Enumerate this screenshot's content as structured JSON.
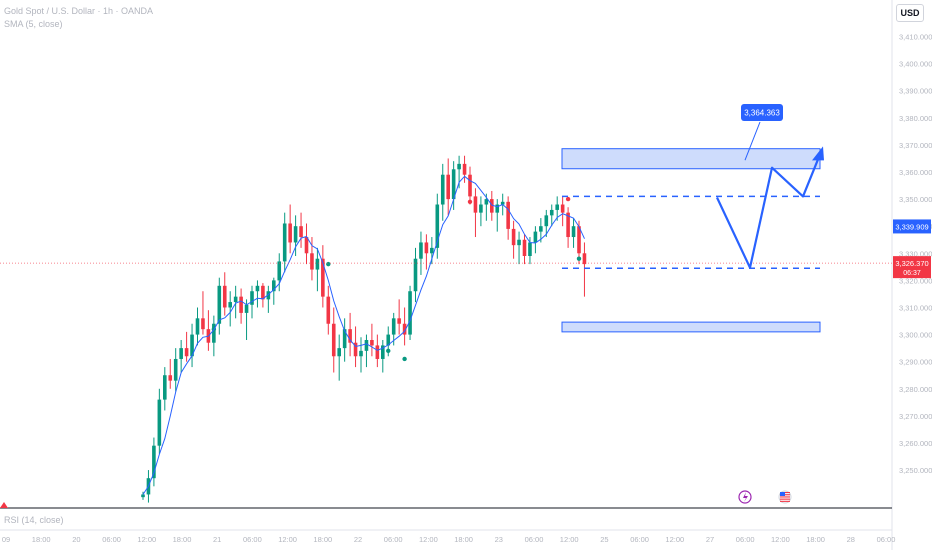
{
  "header": {
    "symbol_line": "Gold Spot / U.S. Dollar · 1h · OANDA",
    "indicator_line": "SMA (5, close)"
  },
  "currency": "USD",
  "lower_pane": {
    "label": "RSI (14, close)"
  },
  "chart_data": {
    "type": "candlestick",
    "y_axis": {
      "range": [
        3236,
        3422
      ],
      "ticks": [
        3250,
        3260,
        3270,
        3280,
        3290,
        3300,
        3310,
        3320,
        3330,
        3340,
        3350,
        3360,
        3370,
        3380,
        3390,
        3400,
        3410
      ],
      "tick_labels": [
        "3,250.000",
        "3,260.000",
        "3,270.000",
        "3,280.000",
        "3,290.000",
        "3,300.000",
        "3,310.000",
        "3,320.000",
        "3,330.000",
        "3,340.000",
        "3,350.000",
        "3,360.000",
        "3,370.000",
        "3,380.000",
        "3,390.000",
        "3,400.000",
        "3,410.000"
      ]
    },
    "x_axis": {
      "tick_labels": [
        "09",
        "18:00",
        "20",
        "06:00",
        "12:00",
        "18:00",
        "21",
        "06:00",
        "12:00",
        "18:00",
        "22",
        "06:00",
        "12:00",
        "18:00",
        "23",
        "06:00",
        "12:00",
        "25",
        "06:00",
        "12:00",
        "27",
        "06:00",
        "12:00",
        "18:00",
        "28",
        "06:00"
      ]
    },
    "candles": [
      [
        3240,
        3242,
        3239,
        3241
      ],
      [
        3241,
        3250,
        3238,
        3247
      ],
      [
        3247,
        3262,
        3244,
        3259
      ],
      [
        3259,
        3280,
        3256,
        3276
      ],
      [
        3276,
        3288,
        3272,
        3285
      ],
      [
        3285,
        3291,
        3280,
        3283
      ],
      [
        3283,
        3295,
        3279,
        3291
      ],
      [
        3291,
        3298,
        3286,
        3295
      ],
      [
        3295,
        3301,
        3290,
        3292
      ],
      [
        3292,
        3304,
        3288,
        3300
      ],
      [
        3300,
        3310,
        3296,
        3306
      ],
      [
        3306,
        3316,
        3300,
        3302
      ],
      [
        3302,
        3309,
        3294,
        3297
      ],
      [
        3297,
        3307,
        3292,
        3304
      ],
      [
        3304,
        3321,
        3300,
        3318
      ],
      [
        3318,
        3323,
        3307,
        3310
      ],
      [
        3310,
        3316,
        3303,
        3312
      ],
      [
        3312,
        3318,
        3306,
        3314
      ],
      [
        3314,
        3317,
        3304,
        3308
      ],
      [
        3308,
        3313,
        3298,
        3311
      ],
      [
        3311,
        3318,
        3306,
        3316
      ],
      [
        3316,
        3320,
        3310,
        3318
      ],
      [
        3318,
        3319,
        3310,
        3313
      ],
      [
        3313,
        3318,
        3308,
        3316
      ],
      [
        3316,
        3321,
        3311,
        3320
      ],
      [
        3320,
        3330,
        3316,
        3327
      ],
      [
        3327,
        3345,
        3323,
        3341
      ],
      [
        3341,
        3348,
        3330,
        3334
      ],
      [
        3334,
        3344,
        3329,
        3340
      ],
      [
        3340,
        3345,
        3332,
        3336
      ],
      [
        3336,
        3341,
        3326,
        3330
      ],
      [
        3330,
        3336,
        3320,
        3324
      ],
      [
        3324,
        3332,
        3316,
        3328
      ],
      [
        3328,
        3333,
        3310,
        3314
      ],
      [
        3314,
        3318,
        3300,
        3304
      ],
      [
        3304,
        3310,
        3286,
        3292
      ],
      [
        3292,
        3300,
        3283,
        3295
      ],
      [
        3295,
        3306,
        3290,
        3302
      ],
      [
        3302,
        3308,
        3292,
        3297
      ],
      [
        3297,
        3303,
        3288,
        3292
      ],
      [
        3292,
        3299,
        3286,
        3294
      ],
      [
        3294,
        3300,
        3288,
        3298
      ],
      [
        3298,
        3304,
        3292,
        3296
      ],
      [
        3296,
        3300,
        3288,
        3291
      ],
      [
        3291,
        3298,
        3286,
        3296
      ],
      [
        3296,
        3303,
        3292,
        3300
      ],
      [
        3300,
        3308,
        3296,
        3306
      ],
      [
        3306,
        3313,
        3300,
        3304
      ],
      [
        3304,
        3310,
        3296,
        3300
      ],
      [
        3300,
        3318,
        3298,
        3316
      ],
      [
        3316,
        3332,
        3312,
        3328
      ],
      [
        3328,
        3338,
        3322,
        3334
      ],
      [
        3334,
        3337,
        3324,
        3330
      ],
      [
        3330,
        3336,
        3326,
        3332
      ],
      [
        3332,
        3352,
        3328,
        3348
      ],
      [
        3348,
        3363,
        3342,
        3359
      ],
      [
        3359,
        3365,
        3344,
        3350
      ],
      [
        3350,
        3364,
        3346,
        3361
      ],
      [
        3361,
        3366,
        3354,
        3363
      ],
      [
        3363,
        3366,
        3356,
        3359
      ],
      [
        3359,
        3362,
        3348,
        3351
      ],
      [
        3351,
        3354,
        3336,
        3345
      ],
      [
        3345,
        3351,
        3340,
        3348
      ],
      [
        3348,
        3352,
        3342,
        3350
      ],
      [
        3350,
        3353,
        3342,
        3345
      ],
      [
        3345,
        3350,
        3338,
        3348
      ],
      [
        3348,
        3352,
        3344,
        3349
      ],
      [
        3349,
        3351,
        3335,
        3339
      ],
      [
        3339,
        3342,
        3328,
        3333
      ],
      [
        3333,
        3338,
        3326,
        3335
      ],
      [
        3335,
        3337,
        3326,
        3329
      ],
      [
        3329,
        3336,
        3326,
        3334
      ],
      [
        3334,
        3340,
        3330,
        3338
      ],
      [
        3338,
        3343,
        3334,
        3340
      ],
      [
        3340,
        3346,
        3336,
        3344
      ],
      [
        3344,
        3348,
        3340,
        3346
      ],
      [
        3346,
        3351,
        3342,
        3348
      ],
      [
        3348,
        3351,
        3340,
        3345
      ],
      [
        3345,
        3347,
        3332,
        3336
      ],
      [
        3336,
        3343,
        3332,
        3340
      ],
      [
        3340,
        3342,
        3326,
        3330
      ],
      [
        3330,
        3334,
        3314,
        3326
      ]
    ],
    "sma": {
      "name": "SMA (5, close)",
      "color": "#2962ff"
    },
    "price_lines": [
      {
        "value": 3339.909,
        "label": "3,339.909",
        "color": "#2962ff"
      },
      {
        "value": 3326.37,
        "label": "3,326.370",
        "sub_label": "06:37",
        "color": "#f23645"
      }
    ],
    "zones": [
      {
        "from": 3361.2,
        "to": 3368.6,
        "color": "#bdd0fb",
        "border": "#2962ff"
      },
      {
        "from": 3301.0,
        "to": 3304.6,
        "color": "#bdd0fb",
        "border": "#2962ff"
      }
    ],
    "dashed_levels": [
      3351.0,
      3324.5
    ],
    "projection_path": [
      [
        3350.6,
        3331.0
      ],
      [
        3324.7,
        3324.6
      ],
      [
        3361.6,
        3324.6
      ],
      [
        3351.0,
        3351.0
      ],
      [
        3366.5,
        3366.5
      ]
    ],
    "annotation": {
      "label": "3,364.363",
      "value": 3364.363
    },
    "colors": {
      "up": "#089981",
      "down": "#f23645",
      "accent": "#2962ff"
    }
  }
}
